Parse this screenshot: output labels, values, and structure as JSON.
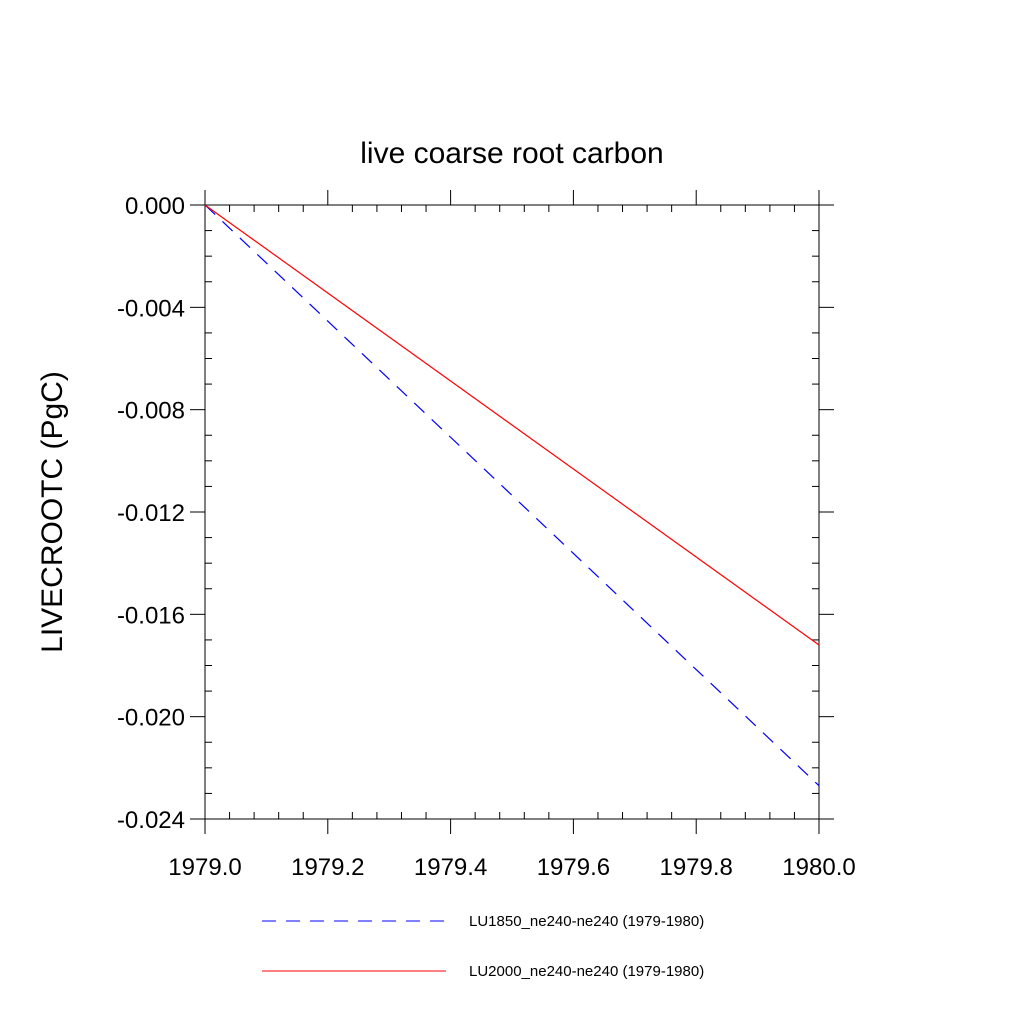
{
  "chart_data": {
    "type": "line",
    "title": "live coarse root carbon",
    "xlabel": "",
    "ylabel": "LIVECROOTC  (PgC)",
    "xlim": [
      1979.0,
      1980.0
    ],
    "ylim": [
      -0.024,
      0.0
    ],
    "xticks": [
      1979.0,
      1979.2,
      1979.4,
      1979.6,
      1979.8,
      1980.0
    ],
    "xtick_labels": [
      "1979.0",
      "1979.2",
      "1979.4",
      "1979.6",
      "1979.8",
      "1980.0"
    ],
    "yticks": [
      0.0,
      -0.004,
      -0.008,
      -0.012,
      -0.016,
      -0.02,
      -0.024
    ],
    "ytick_labels": [
      "0.000",
      "-0.004",
      "-0.008",
      "-0.012",
      "-0.016",
      "-0.020",
      "-0.024"
    ],
    "grid": false,
    "legend_position": "bottom",
    "series": [
      {
        "name": "LU1850_ne240-ne240 (1979-1980)",
        "color": "#0000ff",
        "style": "dashed",
        "x": [
          1979.0,
          1980.0
        ],
        "y": [
          0.0,
          -0.0227
        ]
      },
      {
        "name": "LU2000_ne240-ne240 (1979-1980)",
        "color": "#ff0000",
        "style": "solid",
        "x": [
          1979.0,
          1980.0
        ],
        "y": [
          0.0,
          -0.0172
        ]
      }
    ]
  }
}
